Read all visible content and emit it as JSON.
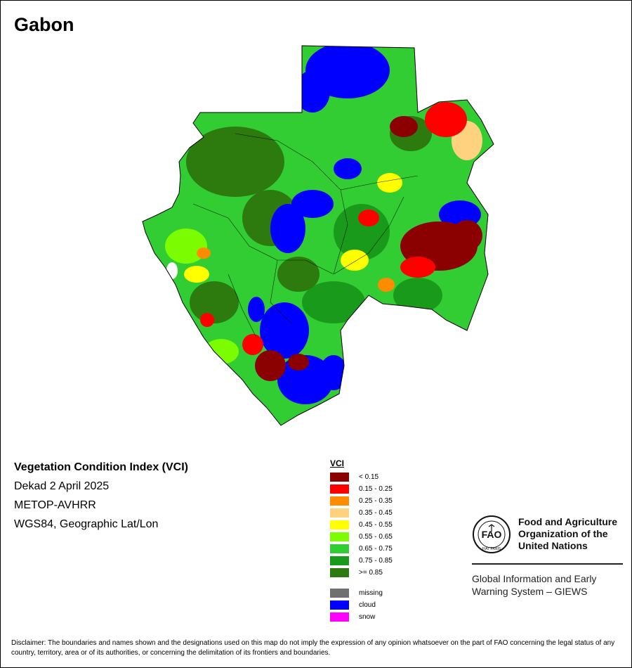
{
  "map": {
    "title": "Gabon"
  },
  "info": {
    "product": "Vegetation Condition Index (VCI)",
    "period": "Dekad 2 April 2025",
    "sensor": "METOP-AVHRR",
    "projection": "WGS84, Geographic Lat/Lon"
  },
  "legend": {
    "heading": "VCI",
    "classes": [
      {
        "label": "< 0.15",
        "color": "#8b0000"
      },
      {
        "label": "0.15 - 0.25",
        "color": "#ff0000"
      },
      {
        "label": "0.25 - 0.35",
        "color": "#ff8c00"
      },
      {
        "label": "0.35 - 0.45",
        "color": "#ffd27f"
      },
      {
        "label": "0.45 - 0.55",
        "color": "#ffff00"
      },
      {
        "label": "0.55 - 0.65",
        "color": "#7cfc00"
      },
      {
        "label": "0.65 - 0.75",
        "color": "#32cd32"
      },
      {
        "label": "0.75 - 0.85",
        "color": "#1a9a1a"
      },
      {
        "label": ">= 0.85",
        "color": "#2d7a0f"
      }
    ],
    "extra": [
      {
        "label": "missing",
        "color": "#707070"
      },
      {
        "label": "cloud",
        "color": "#0000ff"
      },
      {
        "label": "snow",
        "color": "#ff00ff"
      }
    ]
  },
  "fao": {
    "emblem_letters": "FAO",
    "emblem_motto": "FIAT PANIS",
    "org_line1": "Food and Agriculture",
    "org_line2": "Organization of the",
    "org_line3": "United Nations",
    "giews_line1": "Global Information and Early",
    "giews_line2": "Warning System – GIEWS"
  },
  "disclaimer": "Disclaimer: The boundaries and names shown and the designations used on this map do not imply the expression of any opinion whatsoever on the part of FAO concerning the legal status of any country, territory, area or of its authorities, or concerning the delimitation of its frontiers and boundaries."
}
